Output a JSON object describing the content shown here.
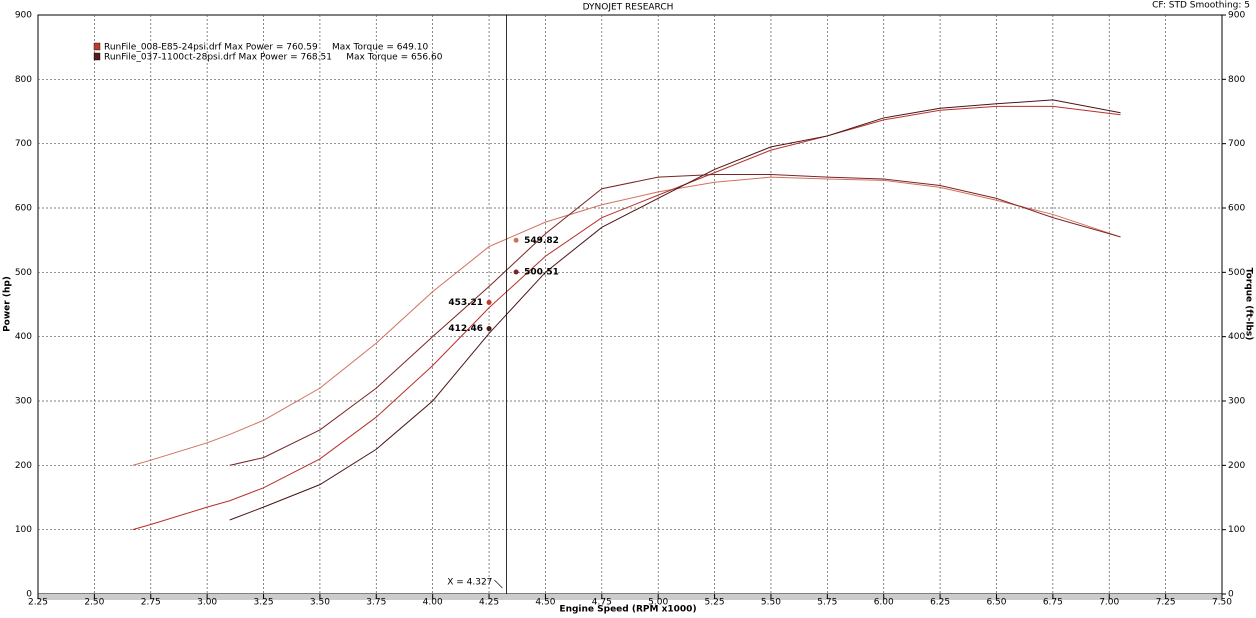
{
  "chart_data": {
    "type": "line",
    "title": "DYNOJET RESEARCH",
    "subtitle": "CF: STD  Smoothing: 5",
    "x_label": "Engine Speed (RPM x1000)",
    "y_label": "Power (hp)",
    "y2_label": "Torque (ft-lbs)",
    "x": [
      2.67,
      2.75,
      3.0,
      3.1,
      3.25,
      3.5,
      3.75,
      4.0,
      4.25,
      4.5,
      4.75,
      5.0,
      5.25,
      5.5,
      5.75,
      6.0,
      6.25,
      6.5,
      6.75,
      7.05
    ],
    "series": [
      {
        "color": "#d2705f",
        "axis": "y2",
        "values": [
          200,
          208,
          235,
          248,
          270,
          320,
          390,
          470,
          540,
          578,
          605,
          625,
          640,
          648,
          645,
          643,
          632,
          612,
          590,
          555
        ]
      },
      {
        "color": "#b8302a",
        "values": [
          100,
          108,
          135,
          145,
          165,
          210,
          275,
          355,
          445,
          525,
          585,
          620,
          655,
          690,
          712,
          737,
          752,
          758,
          758,
          745
        ]
      },
      {
        "color": "#7a2424",
        "axis": "y2",
        "values": [
          null,
          null,
          null,
          200,
          212,
          255,
          320,
          400,
          478,
          560,
          630,
          648,
          652,
          652,
          648,
          645,
          635,
          615,
          585,
          555
        ]
      },
      {
        "color": "#4a1515",
        "values": [
          null,
          null,
          null,
          115,
          135,
          170,
          225,
          300,
          405,
          500,
          570,
          615,
          660,
          695,
          712,
          740,
          755,
          762,
          768,
          748
        ]
      }
    ],
    "legend": [
      {
        "text": "RunFile_008-E85-24psi.drf Max Power = 760.59     Max Torque = 649.10",
        "color": "#c0392b"
      },
      {
        "text": "RunFile_037-1100ct-28psi.drf Max Power = 768.51     Max Torque = 656.60",
        "color": "#5a1a1a"
      }
    ],
    "markers": [
      {
        "x": 4.37,
        "value": 549.82,
        "color": "#d2705f"
      },
      {
        "x": 4.37,
        "value": 500.51,
        "color": "#7a2424"
      },
      {
        "x": 4.25,
        "value": 453.21,
        "color": "#c0392b"
      },
      {
        "x": 4.25,
        "value": 412.46,
        "color": "#4a1515"
      }
    ],
    "cursor": {
      "x": 4.327,
      "label": "X = 4.327"
    },
    "xlim": [
      2.25,
      7.5
    ],
    "xticks": [
      2.25,
      {
        "value": 2.5,
        "label": "2.50"
      },
      2.75,
      {
        "value": 3.0,
        "label": "3.00"
      },
      3.25,
      {
        "value": 3.5,
        "label": "3.50"
      },
      3.75,
      {
        "value": 4.0,
        "label": "4.00"
      },
      4.25,
      {
        "value": 4.5,
        "label": "4.50"
      },
      4.75,
      {
        "value": 5.0,
        "label": "5.00"
      },
      5.25,
      {
        "value": 5.5,
        "label": "5.50"
      },
      5.75,
      {
        "value": 6.0,
        "label": "6.00"
      },
      6.25,
      {
        "value": 6.5,
        "label": "6.50"
      },
      6.75,
      {
        "value": 7.0,
        "label": "7.00"
      },
      7.25,
      {
        "value": 7.5,
        "label": "7.50"
      }
    ],
    "ylim": [
      0,
      900
    ],
    "yticks": [
      0,
      100,
      200,
      300,
      400,
      500,
      600,
      700,
      800,
      900
    ],
    "y2lim": [
      0,
      900
    ],
    "y2ticks": [
      0,
      100,
      200,
      300,
      400,
      500,
      600,
      700,
      800,
      900
    ],
    "grid": true
  }
}
